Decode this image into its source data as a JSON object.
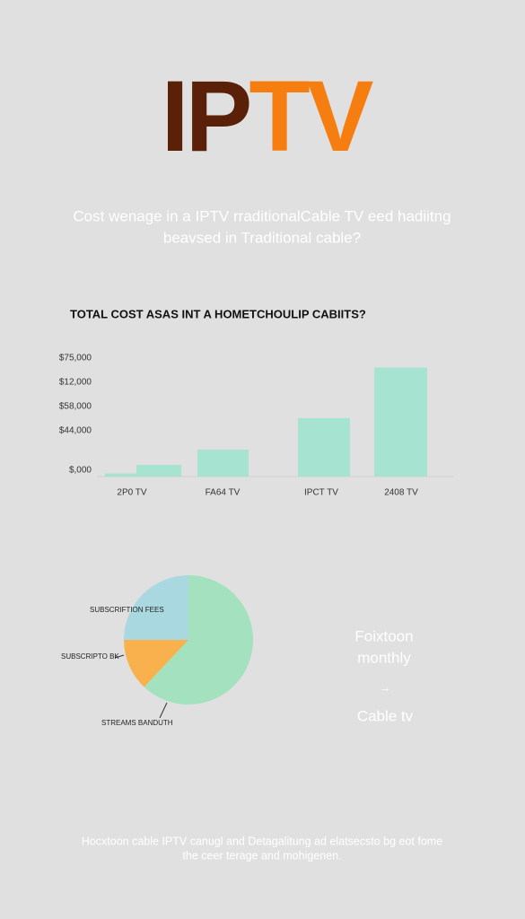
{
  "header": {
    "title_parts": [
      "IP",
      "TV"
    ],
    "subtitle_lines": [
      "Cost wenage in a IPTV rraditionalCable TV eed hadiitng",
      "beavsed in Traditional cable?"
    ]
  },
  "chart_data": [
    {
      "type": "bar",
      "title": "TOTAL COST ASAS INT A HOMETCHOULIP CABIITS?",
      "y_labels": [
        "$75,000",
        "$12,000",
        "$58,000",
        "$44,000",
        "$,000"
      ],
      "categories": [
        null,
        "2P0 TV",
        "FA64 TV",
        "IPCT TV",
        "2408 TV"
      ],
      "values": [
        2000,
        7400,
        17000,
        37000,
        69000
      ],
      "color": "#a6e3d0",
      "ylim": [
        0,
        75000
      ]
    },
    {
      "type": "pie",
      "categories": [
        "SUBSCRIFTION FEES",
        "SUBSCRIPTO BK",
        "STREAMS BANDUTH"
      ],
      "values": [
        25,
        13,
        62
      ],
      "colors": [
        "#a9d8e0",
        "#f8b14c",
        "#a4e2bf"
      ]
    }
  ],
  "side": {
    "lines": [
      "Foixtoon",
      "monthly"
    ],
    "bottom": "Cable tv"
  },
  "footer": {
    "lines": [
      "Hocxtoon cable IPTV canugl and Detagalitung ad elatsecsto bg eot fome",
      "the ceer terage and mohigenen."
    ]
  }
}
